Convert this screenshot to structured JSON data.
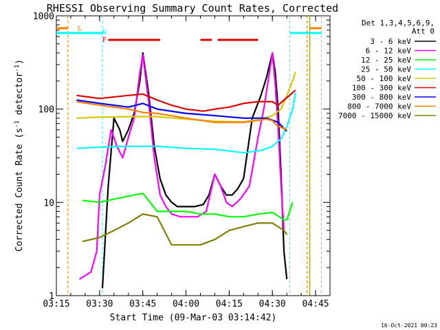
{
  "chart_data": {
    "type": "line",
    "title": "RHESSI Observing Summary Count Rates, Corrected",
    "xlabel": "Start Time (09-Mar-03 03:14:42)",
    "ylabel": "Corrected Count Rate (s",
    "ylabel_sup1": "-1",
    "ylabel_mid": " detector",
    "ylabel_sup2": "-1",
    "ylabel_end": ")",
    "footer_date": "16-Oct-2021 00:23",
    "y_scale": "log",
    "ylim": [
      1,
      1000
    ],
    "xlim": [
      "03:15",
      "04:50"
    ],
    "x_tick_labels": [
      "03:15",
      "03:30",
      "03:45",
      "04:00",
      "04:15",
      "04:30",
      "04:45"
    ],
    "y_tick_labels": [
      "1",
      "10",
      "100",
      "1000"
    ],
    "legend": {
      "position": "right",
      "header_line1": "Det 1,3,4,5,6,9,",
      "header_line2": "Att 0",
      "entries": [
        "3 - 6 keV",
        "6 - 12 keV",
        "12 - 25 keV",
        "25 - 50 keV",
        "50 - 100 keV",
        "100 - 300 keV",
        "300 - 800 keV",
        "800 - 7000 keV",
        "7000 - 15000 keV"
      ]
    },
    "flags": {
      "saa": "S",
      "night": "N",
      "flare": "F"
    },
    "colors": {
      "3 - 6 keV": "#000000",
      "6 - 12 keV": "#ff00ff",
      "12 - 25 keV": "#00ff00",
      "25 - 50 keV": "#00ffff",
      "50 - 100 keV": "#d4c800",
      "100 - 300 keV": "#e00000",
      "300 - 800 keV": "#0000ff",
      "800 - 7000 keV": "#ff8000",
      "7000 - 15000 keV": "#808000",
      "saa_flag": "#ff8000",
      "night_flag": "#00ffff",
      "flare_flag": "#e00000"
    },
    "series": [
      {
        "name": "3 - 6 keV",
        "t": [
          "03:31",
          "03:33",
          "03:35",
          "03:37",
          "03:38",
          "03:40",
          "03:42",
          "03:44",
          "03:45",
          "03:47",
          "03:49",
          "03:51",
          "03:53",
          "03:55",
          "03:57",
          "04:00",
          "04:03",
          "04:06",
          "04:08",
          "04:10",
          "04:12",
          "04:14",
          "04:16",
          "04:18",
          "04:20",
          "04:23",
          "04:26",
          "04:28",
          "04:30",
          "04:31",
          "04:32",
          "04:33",
          "04:34",
          "04:35"
        ],
        "v": [
          1.2,
          15,
          80,
          60,
          45,
          60,
          90,
          200,
          400,
          150,
          40,
          18,
          12,
          10,
          9,
          9,
          9,
          9.5,
          12,
          20,
          15,
          12,
          12,
          14,
          18,
          80,
          140,
          220,
          400,
          250,
          100,
          20,
          3,
          1.5
        ]
      },
      {
        "name": "6 - 12 keV",
        "t": [
          "03:23",
          "03:27",
          "03:29",
          "03:30",
          "03:32",
          "03:34",
          "03:36",
          "03:38",
          "03:40",
          "03:42",
          "03:44",
          "03:45",
          "03:47",
          "03:49",
          "03:51",
          "03:53",
          "03:55",
          "03:58",
          "04:01",
          "04:04",
          "04:07",
          "04:10",
          "04:12",
          "04:14",
          "04:16",
          "04:19",
          "04:22",
          "04:25",
          "04:27",
          "04:29",
          "04:30",
          "04:31",
          "04:32",
          "04:33",
          "04:34"
        ],
        "v": [
          1.5,
          1.8,
          3,
          12,
          25,
          60,
          40,
          30,
          50,
          80,
          250,
          380,
          120,
          30,
          12,
          9,
          7.5,
          7,
          7,
          7,
          8,
          20,
          15,
          10,
          9,
          11,
          15,
          50,
          100,
          250,
          400,
          180,
          60,
          15,
          5
        ]
      },
      {
        "name": "12 - 25 keV",
        "t": [
          "03:24",
          "03:30",
          "03:36",
          "03:42",
          "03:45",
          "03:50",
          "03:55",
          "04:00",
          "04:05",
          "04:10",
          "04:15",
          "04:20",
          "04:25",
          "04:30",
          "04:34",
          "04:35",
          "04:37"
        ],
        "v": [
          10.5,
          10,
          11,
          12,
          12.5,
          8,
          8,
          8,
          7.5,
          7.5,
          7,
          7,
          7.5,
          7.8,
          6.5,
          6.5,
          10
        ]
      },
      {
        "name": "25 - 50 keV",
        "t": [
          "03:22",
          "03:30",
          "03:40",
          "03:50",
          "04:00",
          "04:10",
          "04:20",
          "04:26",
          "04:30",
          "04:33",
          "04:35",
          "04:37",
          "04:38"
        ],
        "v": [
          38,
          39,
          40,
          40,
          38,
          37,
          34,
          36,
          40,
          48,
          65,
          100,
          150
        ]
      },
      {
        "name": "50 - 100 keV",
        "t": [
          "03:22",
          "03:30",
          "03:40",
          "03:50",
          "04:00",
          "04:10",
          "04:20",
          "04:26",
          "04:30",
          "04:33",
          "04:35",
          "04:37",
          "04:38"
        ],
        "v": [
          80,
          82,
          83,
          83,
          78,
          74,
          73,
          78,
          85,
          100,
          140,
          200,
          250
        ]
      },
      {
        "name": "100 - 300 keV",
        "t": [
          "03:22",
          "03:30",
          "03:40",
          "03:45",
          "03:50",
          "03:55",
          "04:00",
          "04:06",
          "04:10",
          "04:15",
          "04:20",
          "04:25",
          "04:30",
          "04:32",
          "04:34",
          "04:36",
          "04:38"
        ],
        "v": [
          140,
          130,
          140,
          145,
          125,
          110,
          100,
          95,
          100,
          105,
          115,
          120,
          120,
          110,
          125,
          140,
          160
        ]
      },
      {
        "name": "300 - 800 keV",
        "t": [
          "03:22",
          "03:30",
          "03:40",
          "03:45",
          "03:50",
          "04:00",
          "04:10",
          "04:20",
          "04:28",
          "04:32",
          "04:34",
          "04:35"
        ],
        "v": [
          125,
          115,
          105,
          115,
          100,
          90,
          85,
          80,
          80,
          72,
          62,
          58
        ]
      },
      {
        "name": "800 - 7000 keV",
        "t": [
          "03:22",
          "03:30",
          "03:40",
          "03:45",
          "03:50",
          "04:00",
          "04:10",
          "04:20",
          "04:28",
          "04:30",
          "04:32",
          "04:34",
          "04:35"
        ],
        "v": [
          120,
          110,
          100,
          92,
          90,
          80,
          72,
          72,
          78,
          75,
          65,
          62,
          60
        ]
      },
      {
        "name": "7000 - 15000 keV",
        "t": [
          "03:24",
          "03:30",
          "03:35",
          "03:40",
          "03:45",
          "03:50",
          "03:55",
          "04:00",
          "04:05",
          "04:10",
          "04:15",
          "04:20",
          "04:25",
          "04:30",
          "04:34",
          "04:35"
        ],
        "v": [
          3.8,
          4.2,
          5,
          6,
          7.5,
          7,
          3.5,
          3.5,
          3.5,
          4,
          5,
          5.5,
          6,
          6,
          5,
          4.5
        ]
      }
    ],
    "vertical_markers": [
      {
        "t": "03:19",
        "color": "saa"
      },
      {
        "t": "03:31",
        "color": "night"
      },
      {
        "t": "04:36",
        "color": "night"
      },
      {
        "t": "04:42",
        "color": "saa"
      },
      {
        "t": "04:43",
        "color": "7000 - 15000 keV"
      },
      {
        "t": "04:47",
        "color": "night"
      }
    ],
    "flag_bars": [
      {
        "flag": "saa",
        "from": "03:15",
        "to": "03:19"
      },
      {
        "flag": "saa",
        "from": "04:43",
        "to": "04:47"
      },
      {
        "flag": "night",
        "from": "03:15",
        "to": "03:31"
      },
      {
        "flag": "night",
        "from": "04:36",
        "to": "04:47"
      },
      {
        "flag": "flare",
        "from": "03:33",
        "to": "03:51"
      },
      {
        "flag": "flare",
        "from": "04:05",
        "to": "04:09"
      },
      {
        "flag": "flare",
        "from": "04:11",
        "to": "04:25"
      }
    ]
  }
}
